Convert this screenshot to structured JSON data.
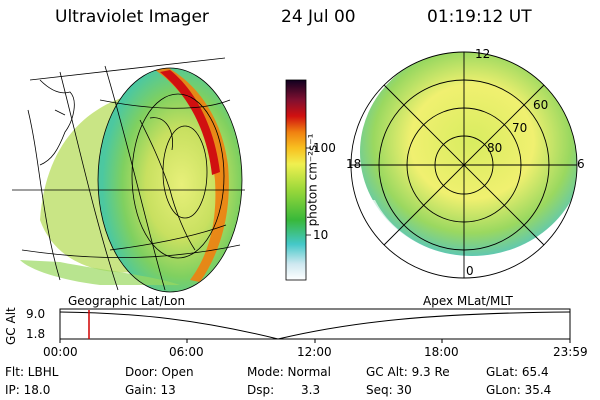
{
  "header": {
    "title": "Ultraviolet Imager",
    "date": "24 Jul 00",
    "time": "01:19:12 UT"
  },
  "colorbar": {
    "label": "photon cm⁻²s⁻¹",
    "ticks": [
      "100",
      "10"
    ]
  },
  "geo_panel": {
    "caption": "Geographic Lat/Lon"
  },
  "polar_panel": {
    "caption": "Apex MLat/MLT",
    "lat_labels": [
      "60",
      "70",
      "80"
    ],
    "mlt_labels": {
      "top": "12",
      "left": "18",
      "right": "6",
      "bottom": "0"
    }
  },
  "timeline": {
    "ylabel": "GC Alt",
    "y_ticks": [
      "9.0",
      "1.8"
    ],
    "x_ticks": [
      "00:00",
      "06:00",
      "12:00",
      "18:00",
      "23:59"
    ],
    "marker_color": "#d00000"
  },
  "status": {
    "flt": "Flt: LBHL",
    "ip": "IP: 18.0",
    "door": "Door: Open",
    "gain": "Gain: 13",
    "mode": "Mode: Normal",
    "dsp_label": "Dsp:",
    "dsp_value": "3.3",
    "gcalt": "GC Alt: 9.3 Re",
    "seq": "Seq: 30",
    "glat": "GLat: 65.4",
    "glon": "GLon: 35.4"
  }
}
